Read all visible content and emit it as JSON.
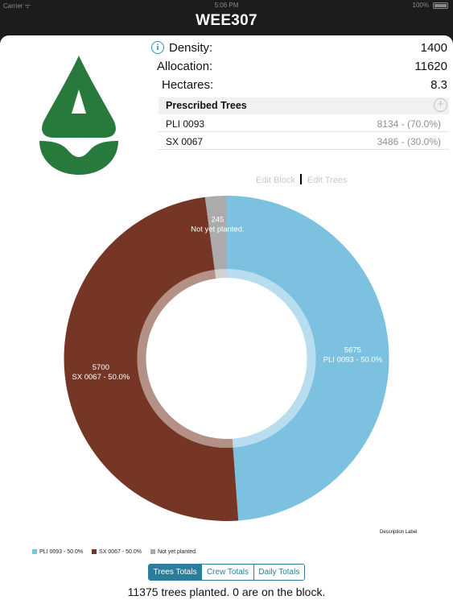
{
  "status_bar": {
    "carrier": "Carrier ᯤ",
    "time": "5:06 PM",
    "battery": "100%"
  },
  "nav": {
    "title": "WEE307"
  },
  "block": {
    "density_label": "Density:",
    "density_value": "1400",
    "allocation_label": "Allocation:",
    "allocation_value": "11620",
    "hectares_label": "Hectares:",
    "hectares_value": "8.3"
  },
  "prescribed": {
    "title": "Prescribed Trees",
    "rows": [
      {
        "name": "PLI 0093",
        "amount": "8134 - (70.0%)"
      },
      {
        "name": "SX 0067",
        "amount": "3486 - (30.0%)"
      }
    ]
  },
  "edit_links": {
    "edit_block": "Edit Block",
    "edit_trees": "Edit Trees"
  },
  "chart_data": {
    "type": "pie",
    "slices": [
      {
        "label": "PLI 0093 - 50.0%",
        "value": 5675,
        "color": "#7dc1e0"
      },
      {
        "label": "SX 0067 - 50.0%",
        "value": 5700,
        "color": "#753625"
      },
      {
        "label": "Not yet planted.",
        "value": 245,
        "color": "#ababab"
      }
    ],
    "legend": [
      "PLI 0093 - 50.0%",
      "SX 0067 - 50.0%",
      "Not yet planted."
    ],
    "legend_position": "bottom-left",
    "description": "Description Label"
  },
  "tabs": [
    {
      "label": "Trees Totals",
      "selected": true
    },
    {
      "label": "Crew Totals",
      "selected": false
    },
    {
      "label": "Daily Totals",
      "selected": false
    }
  ],
  "summary": "11375 trees planted. 0 are on the block.",
  "colors": {
    "accent": "#2b7e99",
    "brand_green": "#277a3c"
  }
}
